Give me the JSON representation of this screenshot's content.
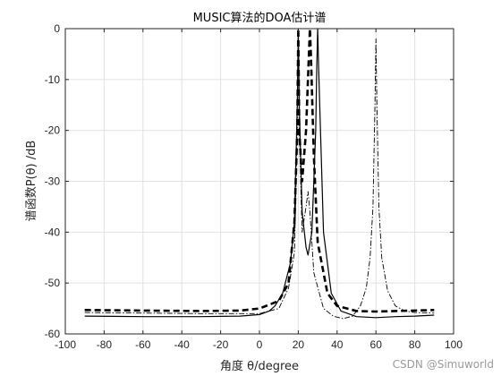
{
  "chart_data": {
    "type": "line",
    "title": "MUSIC算法的DOA估计谱",
    "xlabel": "角度 θ/degree",
    "ylabel": "谱函数P(θ) /dB",
    "xlim": [
      -100,
      100
    ],
    "ylim": [
      -60,
      0
    ],
    "xticks": [
      -100,
      -80,
      -60,
      -40,
      -20,
      0,
      20,
      40,
      60,
      80,
      100
    ],
    "yticks": [
      0,
      -10,
      -20,
      -30,
      -40,
      -50,
      -60
    ],
    "grid": true,
    "series": [
      {
        "style": "dashed-bold",
        "color": "#000000",
        "x": [
          -90,
          -60,
          -30,
          -10,
          0,
          10,
          15,
          18,
          19.5,
          20,
          20.5,
          22,
          24,
          25.5,
          26,
          26.5,
          28,
          30,
          35,
          40,
          50,
          60,
          70,
          80,
          90
        ],
        "y": [
          -55.3,
          -55.4,
          -55.5,
          -55.4,
          -55.0,
          -53.5,
          -50.0,
          -38.0,
          -20.0,
          0,
          -20.0,
          -30.0,
          -20.0,
          -5.0,
          0,
          -5.0,
          -25.0,
          -42.0,
          -52.0,
          -54.5,
          -55.5,
          -55.6,
          -55.5,
          -55.4,
          -55.3
        ]
      },
      {
        "style": "solid",
        "color": "#000000",
        "x": [
          -90,
          -60,
          -30,
          -10,
          0,
          5,
          8,
          12,
          16,
          18,
          19.5,
          20,
          20.5,
          22,
          24,
          25,
          27,
          29,
          29.5,
          30,
          30.5,
          33,
          37,
          42,
          50,
          60,
          70,
          80,
          90
        ],
        "y": [
          -56.5,
          -56.6,
          -56.6,
          -56.5,
          -56.2,
          -55.5,
          -54.5,
          -52.0,
          -46.0,
          -38.0,
          -15.0,
          0,
          -15.0,
          -36.0,
          -43.0,
          -44.5,
          -40.0,
          -20.0,
          -8.0,
          0,
          -8.0,
          -40.0,
          -52.0,
          -55.5,
          -56.6,
          -56.8,
          -56.6,
          -56.5,
          -56.3
        ]
      },
      {
        "style": "dashdot",
        "color": "#000000",
        "x": [
          -90,
          -60,
          -30,
          -10,
          0,
          10,
          15,
          18,
          19.5,
          20,
          20.5,
          22,
          24,
          25,
          26,
          28,
          33,
          38,
          43,
          48,
          52,
          55,
          57,
          58.5,
          59.5,
          60,
          60.5,
          61.5,
          63,
          66,
          70,
          75,
          80,
          90
        ],
        "y": [
          -55.8,
          -55.9,
          -56.0,
          -56.0,
          -56.0,
          -55.0,
          -51.0,
          -44.0,
          -20.0,
          0,
          -20.0,
          -40.0,
          -35.0,
          -32.0,
          -36.0,
          -48.0,
          -55.0,
          -56.5,
          -57.0,
          -56.5,
          -54.5,
          -51.0,
          -45.0,
          -35.0,
          -15.0,
          -2.0,
          -15.0,
          -35.0,
          -45.0,
          -51.5,
          -54.5,
          -55.5,
          -55.8,
          -55.9
        ]
      }
    ]
  },
  "watermark": "CSDN @Simuworld"
}
